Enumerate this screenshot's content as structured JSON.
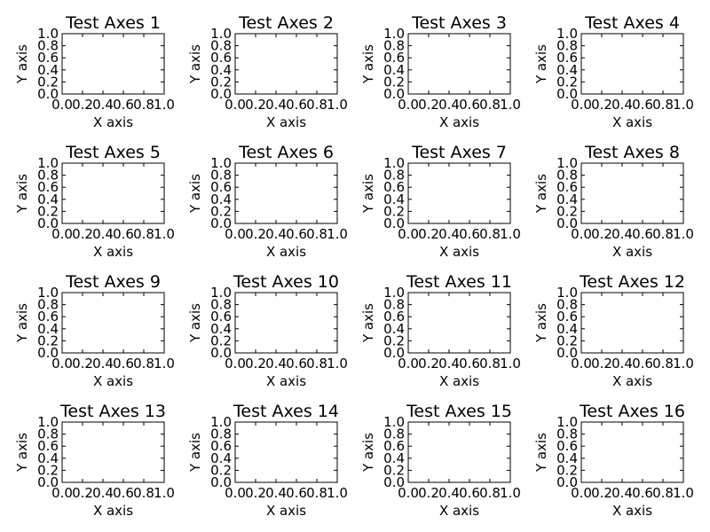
{
  "chart_data": [
    {
      "type": "line",
      "title": "Test Axes 1",
      "xlabel": "X axis",
      "ylabel": "Y axis",
      "xlim": [
        0.0,
        1.0
      ],
      "ylim": [
        0.0,
        1.0
      ],
      "xticks": [
        "0.0",
        "0.2",
        "0.4",
        "0.6",
        "0.8",
        "1.0"
      ],
      "yticks": [
        "0.0",
        "0.2",
        "0.4",
        "0.6",
        "0.8",
        "1.0"
      ],
      "series": [],
      "grid": false
    },
    {
      "type": "line",
      "title": "Test Axes 2",
      "xlabel": "X axis",
      "ylabel": "Y axis",
      "xlim": [
        0.0,
        1.0
      ],
      "ylim": [
        0.0,
        1.0
      ],
      "xticks": [
        "0.0",
        "0.2",
        "0.4",
        "0.6",
        "0.8",
        "1.0"
      ],
      "yticks": [
        "0.0",
        "0.2",
        "0.4",
        "0.6",
        "0.8",
        "1.0"
      ],
      "series": [],
      "grid": false
    },
    {
      "type": "line",
      "title": "Test Axes 3",
      "xlabel": "X axis",
      "ylabel": "Y axis",
      "xlim": [
        0.0,
        1.0
      ],
      "ylim": [
        0.0,
        1.0
      ],
      "xticks": [
        "0.0",
        "0.2",
        "0.4",
        "0.6",
        "0.8",
        "1.0"
      ],
      "yticks": [
        "0.0",
        "0.2",
        "0.4",
        "0.6",
        "0.8",
        "1.0"
      ],
      "series": [],
      "grid": false
    },
    {
      "type": "line",
      "title": "Test Axes 4",
      "xlabel": "X axis",
      "ylabel": "Y axis",
      "xlim": [
        0.0,
        1.0
      ],
      "ylim": [
        0.0,
        1.0
      ],
      "xticks": [
        "0.0",
        "0.2",
        "0.4",
        "0.6",
        "0.8",
        "1.0"
      ],
      "yticks": [
        "0.0",
        "0.2",
        "0.4",
        "0.6",
        "0.8",
        "1.0"
      ],
      "series": [],
      "grid": false
    },
    {
      "type": "line",
      "title": "Test Axes 5",
      "xlabel": "X axis",
      "ylabel": "Y axis",
      "xlim": [
        0.0,
        1.0
      ],
      "ylim": [
        0.0,
        1.0
      ],
      "xticks": [
        "0.0",
        "0.2",
        "0.4",
        "0.6",
        "0.8",
        "1.0"
      ],
      "yticks": [
        "0.0",
        "0.2",
        "0.4",
        "0.6",
        "0.8",
        "1.0"
      ],
      "series": [],
      "grid": false
    },
    {
      "type": "line",
      "title": "Test Axes 6",
      "xlabel": "X axis",
      "ylabel": "Y axis",
      "xlim": [
        0.0,
        1.0
      ],
      "ylim": [
        0.0,
        1.0
      ],
      "xticks": [
        "0.0",
        "0.2",
        "0.4",
        "0.6",
        "0.8",
        "1.0"
      ],
      "yticks": [
        "0.0",
        "0.2",
        "0.4",
        "0.6",
        "0.8",
        "1.0"
      ],
      "series": [],
      "grid": false
    },
    {
      "type": "line",
      "title": "Test Axes 7",
      "xlabel": "X axis",
      "ylabel": "Y axis",
      "xlim": [
        0.0,
        1.0
      ],
      "ylim": [
        0.0,
        1.0
      ],
      "xticks": [
        "0.0",
        "0.2",
        "0.4",
        "0.6",
        "0.8",
        "1.0"
      ],
      "yticks": [
        "0.0",
        "0.2",
        "0.4",
        "0.6",
        "0.8",
        "1.0"
      ],
      "series": [],
      "grid": false
    },
    {
      "type": "line",
      "title": "Test Axes 8",
      "xlabel": "X axis",
      "ylabel": "Y axis",
      "xlim": [
        0.0,
        1.0
      ],
      "ylim": [
        0.0,
        1.0
      ],
      "xticks": [
        "0.0",
        "0.2",
        "0.4",
        "0.6",
        "0.8",
        "1.0"
      ],
      "yticks": [
        "0.0",
        "0.2",
        "0.4",
        "0.6",
        "0.8",
        "1.0"
      ],
      "series": [],
      "grid": false
    },
    {
      "type": "line",
      "title": "Test Axes 9",
      "xlabel": "X axis",
      "ylabel": "Y axis",
      "xlim": [
        0.0,
        1.0
      ],
      "ylim": [
        0.0,
        1.0
      ],
      "xticks": [
        "0.0",
        "0.2",
        "0.4",
        "0.6",
        "0.8",
        "1.0"
      ],
      "yticks": [
        "0.0",
        "0.2",
        "0.4",
        "0.6",
        "0.8",
        "1.0"
      ],
      "series": [],
      "grid": false
    },
    {
      "type": "line",
      "title": "Test Axes 10",
      "xlabel": "X axis",
      "ylabel": "Y axis",
      "xlim": [
        0.0,
        1.0
      ],
      "ylim": [
        0.0,
        1.0
      ],
      "xticks": [
        "0.0",
        "0.2",
        "0.4",
        "0.6",
        "0.8",
        "1.0"
      ],
      "yticks": [
        "0.0",
        "0.2",
        "0.4",
        "0.6",
        "0.8",
        "1.0"
      ],
      "series": [],
      "grid": false
    },
    {
      "type": "line",
      "title": "Test Axes 11",
      "xlabel": "X axis",
      "ylabel": "Y axis",
      "xlim": [
        0.0,
        1.0
      ],
      "ylim": [
        0.0,
        1.0
      ],
      "xticks": [
        "0.0",
        "0.2",
        "0.4",
        "0.6",
        "0.8",
        "1.0"
      ],
      "yticks": [
        "0.0",
        "0.2",
        "0.4",
        "0.6",
        "0.8",
        "1.0"
      ],
      "series": [],
      "grid": false
    },
    {
      "type": "line",
      "title": "Test Axes 12",
      "xlabel": "X axis",
      "ylabel": "Y axis",
      "xlim": [
        0.0,
        1.0
      ],
      "ylim": [
        0.0,
        1.0
      ],
      "xticks": [
        "0.0",
        "0.2",
        "0.4",
        "0.6",
        "0.8",
        "1.0"
      ],
      "yticks": [
        "0.0",
        "0.2",
        "0.4",
        "0.6",
        "0.8",
        "1.0"
      ],
      "series": [],
      "grid": false
    },
    {
      "type": "line",
      "title": "Test Axes 13",
      "xlabel": "X axis",
      "ylabel": "Y axis",
      "xlim": [
        0.0,
        1.0
      ],
      "ylim": [
        0.0,
        1.0
      ],
      "xticks": [
        "0.0",
        "0.2",
        "0.4",
        "0.6",
        "0.8",
        "1.0"
      ],
      "yticks": [
        "0.0",
        "0.2",
        "0.4",
        "0.6",
        "0.8",
        "1.0"
      ],
      "series": [],
      "grid": false
    },
    {
      "type": "line",
      "title": "Test Axes 14",
      "xlabel": "X axis",
      "ylabel": "Y axis",
      "xlim": [
        0.0,
        1.0
      ],
      "ylim": [
        0.0,
        1.0
      ],
      "xticks": [
        "0.0",
        "0.2",
        "0.4",
        "0.6",
        "0.8",
        "1.0"
      ],
      "yticks": [
        "0.0",
        "0.2",
        "0.4",
        "0.6",
        "0.8",
        "1.0"
      ],
      "series": [],
      "grid": false
    },
    {
      "type": "line",
      "title": "Test Axes 15",
      "xlabel": "X axis",
      "ylabel": "Y axis",
      "xlim": [
        0.0,
        1.0
      ],
      "ylim": [
        0.0,
        1.0
      ],
      "xticks": [
        "0.0",
        "0.2",
        "0.4",
        "0.6",
        "0.8",
        "1.0"
      ],
      "yticks": [
        "0.0",
        "0.2",
        "0.4",
        "0.6",
        "0.8",
        "1.0"
      ],
      "series": [],
      "grid": false
    },
    {
      "type": "line",
      "title": "Test Axes 16",
      "xlabel": "X axis",
      "ylabel": "Y axis",
      "xlim": [
        0.0,
        1.0
      ],
      "ylim": [
        0.0,
        1.0
      ],
      "xticks": [
        "0.0",
        "0.2",
        "0.4",
        "0.6",
        "0.8",
        "1.0"
      ],
      "yticks": [
        "0.0",
        "0.2",
        "0.4",
        "0.6",
        "0.8",
        "1.0"
      ],
      "series": [],
      "grid": false
    }
  ],
  "colors": {
    "background": "#ffffff",
    "axes": "#000000",
    "text": "#000000"
  }
}
